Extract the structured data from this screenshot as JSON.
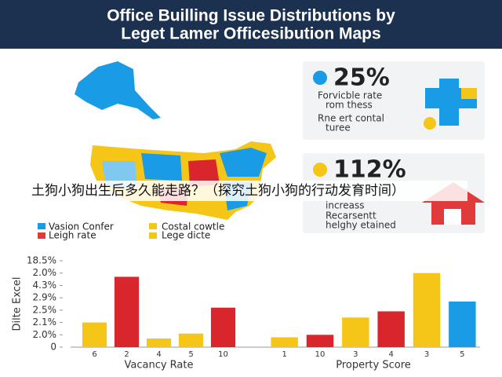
{
  "header": {
    "title_lines": [
      "Office Builling Issue Distributions by",
      "Leget Lamer Officesibution Maps"
    ]
  },
  "overlay": "土狗小狗出生后多久能走路？（探究土狗小狗的行动发育时间）",
  "legend": [
    {
      "label": "Vasion Confer",
      "color": "#1a9be6"
    },
    {
      "label": "Costal cowtle",
      "color": "#f5c518"
    },
    {
      "label": "Leigh rate",
      "color": "#e03a3a"
    },
    {
      "label": "Lege dicte",
      "color": "#f5c518"
    }
  ],
  "cards": [
    {
      "stat": "25%",
      "lines": [
        "Forvicble rate",
        "rom thess",
        "Rne ert contal",
        "turee"
      ]
    },
    {
      "stat": "112%",
      "lines": [
        "increass",
        "Recarsentt",
        "helghy etained"
      ]
    }
  ],
  "chart_data": [
    {
      "type": "bar",
      "ylabel": "Dilte Excel",
      "xlabel": "Vacancy Rate",
      "categories": [
        "6",
        "2",
        "4",
        "5",
        "10"
      ],
      "values": [
        2.0,
        5.7,
        0.7,
        1.1,
        3.2
      ],
      "colors": [
        "#f5c518",
        "#d9262c",
        "#f5c518",
        "#f5c518",
        "#d9262c"
      ],
      "ylim": [
        0,
        7
      ],
      "yticks": [
        {
          "value": 0,
          "label": "0"
        },
        {
          "value": 1,
          "label": "2.0%"
        },
        {
          "value": 2,
          "label": "2.1%"
        },
        {
          "value": 3,
          "label": "2.5%"
        },
        {
          "value": 4,
          "label": "2.9%"
        },
        {
          "value": 5,
          "label": "4.3%"
        },
        {
          "value": 6,
          "label": "2.0%"
        },
        {
          "value": 7,
          "label": "18.5%"
        }
      ]
    },
    {
      "type": "bar",
      "xlabel": "Property Score",
      "categories": [
        "1",
        "10",
        "3",
        "4",
        "3",
        "5"
      ],
      "values": [
        0.8,
        1.0,
        2.4,
        2.9,
        6.0,
        3.7
      ],
      "colors": [
        "#f5c518",
        "#d9262c",
        "#f5c518",
        "#d9262c",
        "#f5c518",
        "#1a9be6"
      ],
      "ylim": [
        0,
        7
      ]
    }
  ]
}
